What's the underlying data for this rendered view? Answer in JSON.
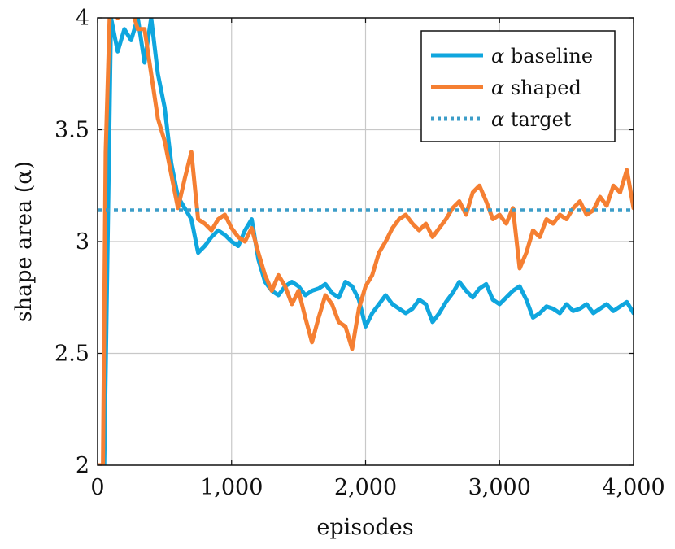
{
  "chart_data": {
    "type": "line",
    "title": "",
    "xlabel": "episodes",
    "ylabel": "shape area (α)",
    "xlim": [
      0,
      4000
    ],
    "ylim": [
      2,
      4
    ],
    "xticks": [
      0,
      1000,
      2000,
      3000,
      4000
    ],
    "xtick_labels": [
      "0",
      "1,000",
      "2,000",
      "3,000",
      "4,000"
    ],
    "yticks": [
      2,
      2.5,
      3,
      3.5,
      4
    ],
    "ytick_labels": [
      "2",
      "2.5",
      "3",
      "3.5",
      "4"
    ],
    "grid": true,
    "legend": {
      "placement": "top-right",
      "entries": [
        {
          "symbol": "α",
          "text": " baseline"
        },
        {
          "symbol": "α",
          "text": " shaped"
        },
        {
          "symbol": "α",
          "text": " target"
        }
      ]
    },
    "series": [
      {
        "name": "α baseline",
        "color": "#0FA6DE",
        "style": "solid",
        "x": [
          0,
          50,
          80,
          100,
          150,
          200,
          250,
          300,
          350,
          400,
          450,
          500,
          550,
          600,
          650,
          700,
          750,
          800,
          850,
          900,
          950,
          1000,
          1050,
          1100,
          1150,
          1200,
          1250,
          1300,
          1350,
          1400,
          1450,
          1500,
          1550,
          1600,
          1650,
          1700,
          1750,
          1800,
          1850,
          1900,
          1950,
          2000,
          2050,
          2100,
          2150,
          2200,
          2250,
          2300,
          2350,
          2400,
          2450,
          2500,
          2550,
          2600,
          2650,
          2700,
          2750,
          2800,
          2850,
          2900,
          2950,
          3000,
          3050,
          3100,
          3150,
          3200,
          3250,
          3300,
          3350,
          3400,
          3450,
          3500,
          3550,
          3600,
          3650,
          3700,
          3750,
          3800,
          3850,
          3900,
          3950,
          4000
        ],
        "y": [
          2.0,
          2.0,
          3.2,
          4.0,
          3.85,
          3.95,
          3.9,
          4.0,
          3.8,
          4.0,
          3.75,
          3.6,
          3.35,
          3.2,
          3.15,
          3.1,
          2.95,
          2.98,
          3.02,
          3.05,
          3.03,
          3.0,
          2.98,
          3.05,
          3.1,
          2.92,
          2.82,
          2.78,
          2.76,
          2.8,
          2.82,
          2.8,
          2.76,
          2.78,
          2.79,
          2.81,
          2.77,
          2.75,
          2.82,
          2.8,
          2.74,
          2.62,
          2.68,
          2.72,
          2.76,
          2.72,
          2.7,
          2.68,
          2.7,
          2.74,
          2.72,
          2.64,
          2.68,
          2.73,
          2.77,
          2.82,
          2.78,
          2.75,
          2.79,
          2.81,
          2.74,
          2.72,
          2.75,
          2.78,
          2.8,
          2.74,
          2.66,
          2.68,
          2.71,
          2.7,
          2.68,
          2.72,
          2.69,
          2.7,
          2.72,
          2.68,
          2.7,
          2.72,
          2.69,
          2.71,
          2.73,
          2.68
        ]
      },
      {
        "name": "α shaped",
        "color": "#F57F32",
        "style": "solid",
        "x": [
          0,
          40,
          60,
          90,
          120,
          150,
          200,
          250,
          300,
          350,
          400,
          450,
          500,
          550,
          600,
          650,
          700,
          750,
          800,
          850,
          900,
          950,
          1000,
          1050,
          1100,
          1150,
          1200,
          1250,
          1300,
          1350,
          1400,
          1450,
          1500,
          1550,
          1600,
          1650,
          1700,
          1750,
          1800,
          1850,
          1900,
          1950,
          2000,
          2050,
          2100,
          2150,
          2200,
          2250,
          2300,
          2350,
          2400,
          2450,
          2500,
          2550,
          2600,
          2650,
          2700,
          2750,
          2800,
          2850,
          2900,
          2950,
          3000,
          3050,
          3100,
          3150,
          3200,
          3250,
          3300,
          3350,
          3400,
          3450,
          3500,
          3550,
          3600,
          3650,
          3700,
          3750,
          3800,
          3850,
          3900,
          3950,
          4000
        ],
        "y": [
          2.0,
          2.0,
          3.4,
          4.0,
          4.05,
          4.0,
          4.1,
          4.05,
          3.95,
          3.95,
          3.75,
          3.55,
          3.45,
          3.3,
          3.15,
          3.28,
          3.4,
          3.1,
          3.08,
          3.05,
          3.1,
          3.12,
          3.06,
          3.02,
          3.0,
          3.06,
          2.95,
          2.85,
          2.78,
          2.85,
          2.8,
          2.72,
          2.78,
          2.66,
          2.55,
          2.66,
          2.76,
          2.72,
          2.64,
          2.62,
          2.52,
          2.7,
          2.8,
          2.85,
          2.95,
          3.0,
          3.06,
          3.1,
          3.12,
          3.08,
          3.05,
          3.08,
          3.02,
          3.06,
          3.1,
          3.15,
          3.18,
          3.12,
          3.22,
          3.25,
          3.18,
          3.1,
          3.12,
          3.08,
          3.15,
          2.88,
          2.95,
          3.05,
          3.02,
          3.1,
          3.08,
          3.12,
          3.1,
          3.15,
          3.18,
          3.12,
          3.14,
          3.2,
          3.16,
          3.25,
          3.22,
          3.32,
          3.15
        ]
      },
      {
        "name": "α target",
        "color": "#3D9DC8",
        "style": "dotted",
        "x": [
          0,
          4000
        ],
        "y": [
          3.14,
          3.14
        ]
      }
    ]
  }
}
